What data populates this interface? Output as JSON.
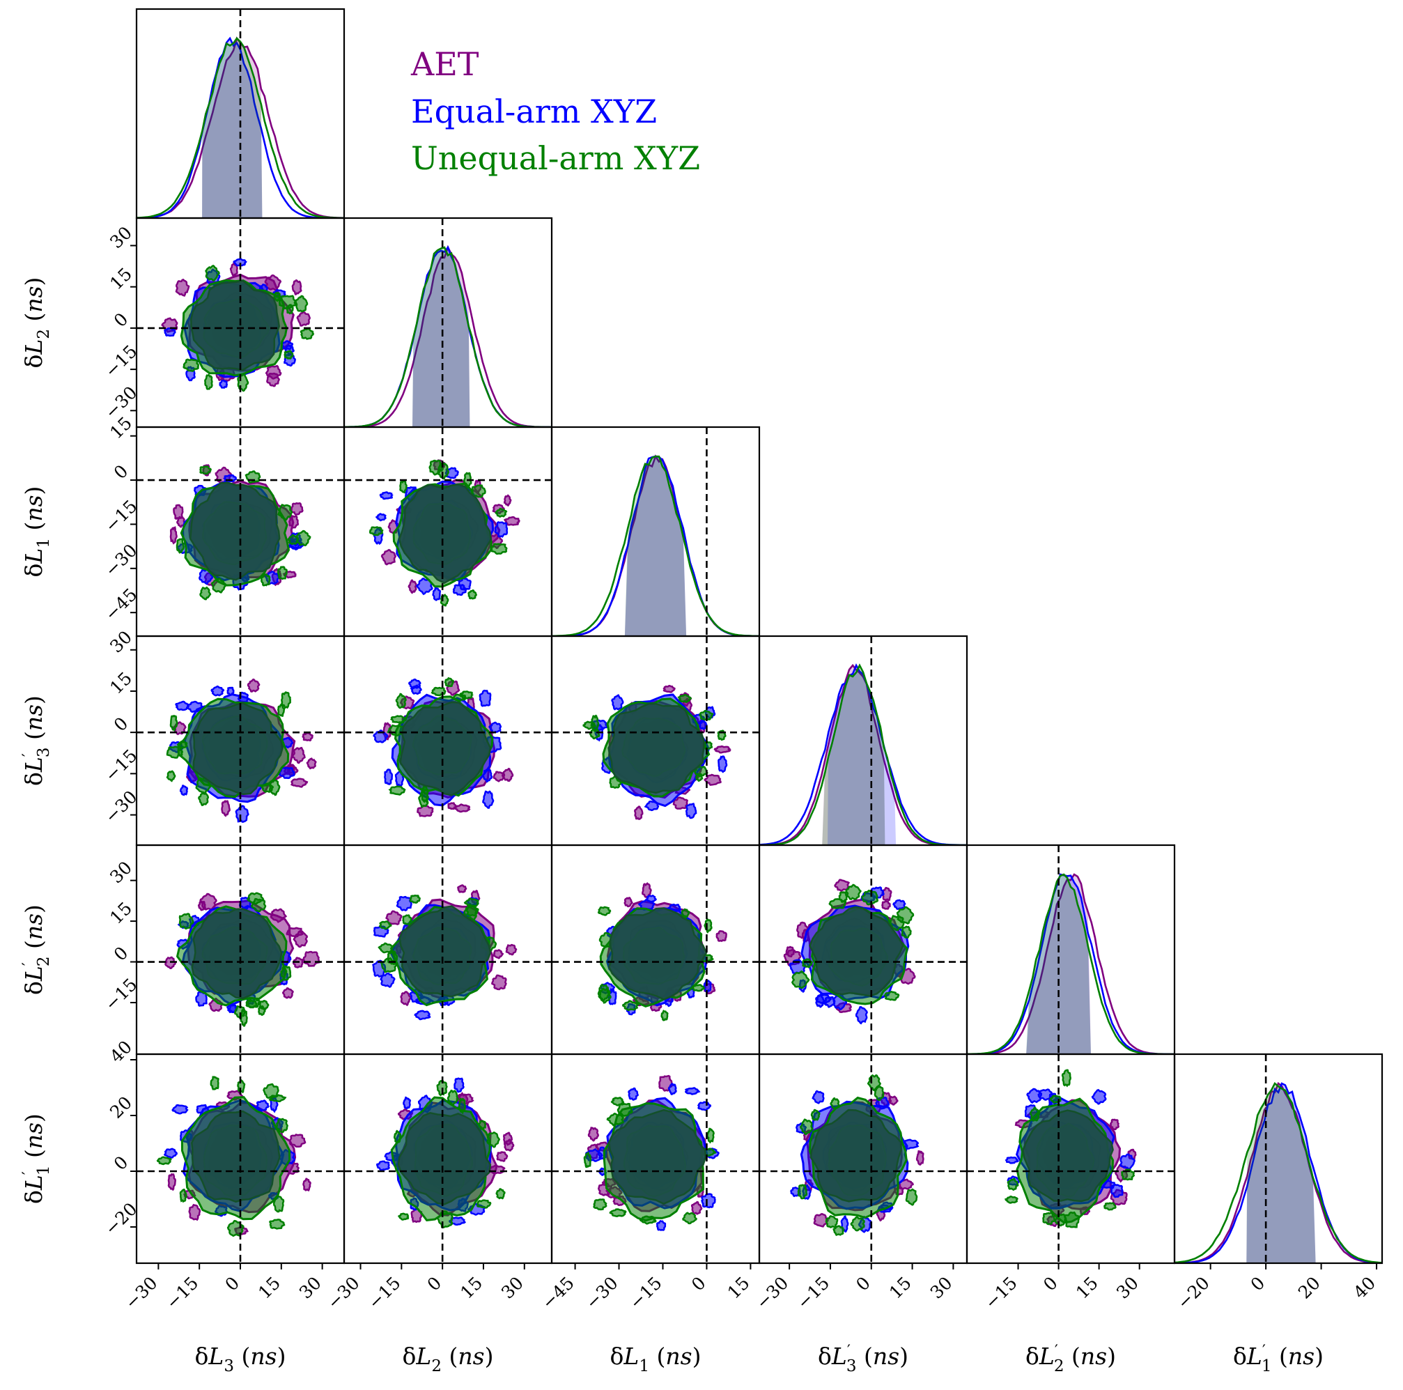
{
  "chart_data": {
    "type": "corner",
    "units": "ns",
    "parameters": [
      {
        "key": "dL3",
        "label": "δL3 (ns)",
        "sym": "L",
        "sub": "3",
        "prime": false,
        "range": [
          -38,
          38
        ],
        "ticks": [
          -30,
          -15,
          0,
          15,
          30
        ],
        "truth": 0
      },
      {
        "key": "dL2",
        "label": "δL2 (ns)",
        "sym": "L",
        "sub": "2",
        "prime": false,
        "range": [
          -36,
          40
        ],
        "ticks": [
          -30,
          -15,
          0,
          15,
          30
        ],
        "truth": 0
      },
      {
        "key": "dL1",
        "label": "δL1 (ns)",
        "sym": "L",
        "sub": "1",
        "prime": false,
        "range": [
          -53,
          18
        ],
        "ticks": [
          -45,
          -30,
          -15,
          0,
          15
        ],
        "truth": 0
      },
      {
        "key": "dL3p",
        "label": "δL'3 (ns)",
        "sym": "L",
        "sub": "3",
        "prime": true,
        "range": [
          -41,
          35
        ],
        "ticks": [
          -30,
          -15,
          0,
          15,
          30
        ],
        "truth": 0
      },
      {
        "key": "dL2p",
        "label": "δL'2 (ns)",
        "sym": "L",
        "sub": "2",
        "prime": true,
        "range": [
          -34,
          43
        ],
        "ticks": [
          -15,
          0,
          15,
          30
        ],
        "truth": 0
      },
      {
        "key": "dL1p",
        "label": "δL'1 (ns)",
        "sym": "L",
        "sub": "1",
        "prime": true,
        "range": [
          -33,
          42
        ],
        "ticks": [
          -20,
          0,
          20,
          40
        ],
        "truth": 0
      }
    ],
    "series": [
      {
        "name": "AET",
        "color": "#800080",
        "means": [
          0,
          2,
          -17,
          -6,
          5,
          5
        ],
        "sigmas": [
          10,
          9,
          8.5,
          9,
          9,
          10
        ],
        "ci68": [
          [
            -14,
            8
          ],
          [
            -11,
            10
          ],
          [
            -28,
            -7
          ],
          [
            -18,
            5
          ],
          [
            -12,
            12
          ],
          [
            -7,
            18
          ]
        ]
      },
      {
        "name": "Equal-arm XYZ",
        "color": "#0000ff",
        "means": [
          -3,
          0,
          -17,
          -6,
          3,
          6
        ],
        "sigmas": [
          9,
          9,
          8.5,
          10,
          9,
          10
        ],
        "ci68": [
          [
            -14,
            8
          ],
          [
            -11,
            10
          ],
          [
            -28,
            -7
          ],
          [
            -16,
            9
          ],
          [
            -12,
            12
          ],
          [
            -7,
            18
          ]
        ]
      },
      {
        "name": "Unequal-arm XYZ",
        "color": "#008000",
        "means": [
          -2,
          0,
          -18,
          -5,
          2,
          4
        ],
        "sigmas": [
          10,
          9,
          9,
          9,
          9,
          11
        ],
        "ci68": [
          [
            -14,
            8
          ],
          [
            -11,
            10
          ],
          [
            -28,
            -7
          ],
          [
            -18,
            5
          ],
          [
            -12,
            12
          ],
          [
            -7,
            18
          ]
        ]
      }
    ],
    "legend": {
      "placement": "top-right",
      "entries": [
        "AET",
        "Equal-arm XYZ",
        "Unequal-arm XYZ"
      ]
    },
    "truth_lines": "dashed black at 0",
    "contour_fill_color": "#1e4d4a"
  }
}
